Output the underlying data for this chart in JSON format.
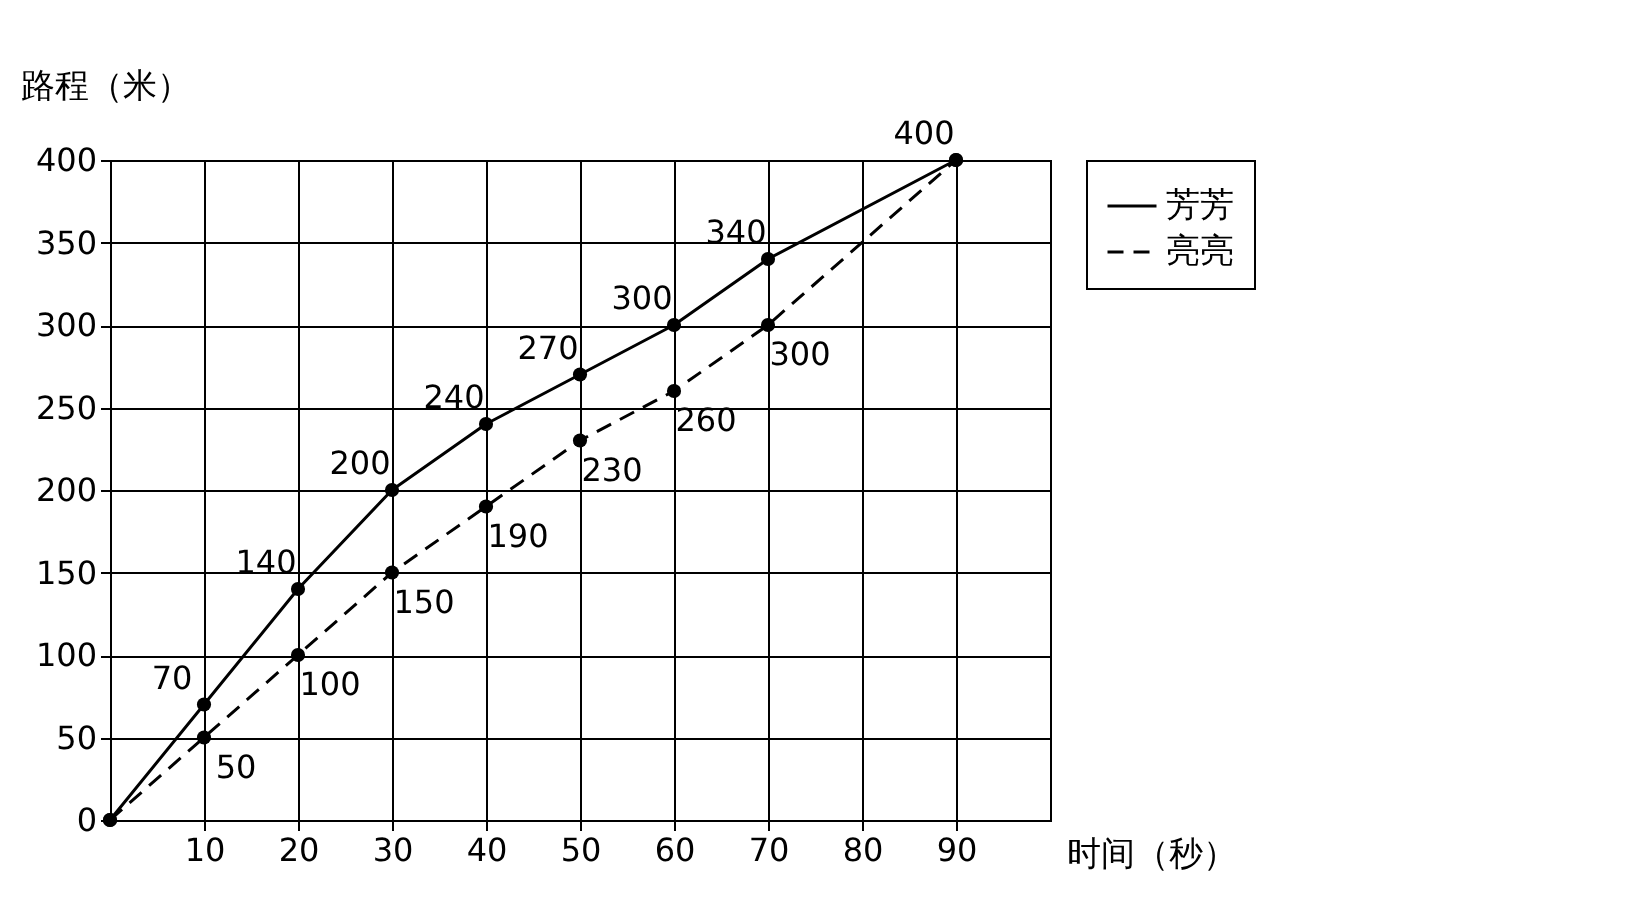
{
  "chart_data": {
    "type": "line",
    "xlabel": "时间（秒）",
    "ylabel": "路程（米）",
    "x": [
      0,
      10,
      20,
      30,
      40,
      50,
      60,
      70,
      90
    ],
    "series": [
      {
        "name": "芳芳",
        "color": "#000000",
        "line_style": "solid",
        "values": [
          0,
          70,
          140,
          200,
          240,
          270,
          300,
          340,
          400
        ],
        "value_labels": [
          null,
          "70",
          "140",
          "200",
          "240",
          "270",
          "300",
          "340",
          "400"
        ]
      },
      {
        "name": "亮亮",
        "color": "#000000",
        "line_style": "dashed",
        "values": [
          0,
          50,
          100,
          150,
          190,
          230,
          260,
          300,
          400
        ],
        "value_labels": [
          null,
          "50",
          "100",
          "150",
          "190",
          "230",
          "260",
          "300",
          null
        ]
      }
    ],
    "xlim": [
      0,
      100
    ],
    "xticks": [
      10,
      20,
      30,
      40,
      50,
      60,
      70,
      80,
      90
    ],
    "ylim": [
      0,
      400
    ],
    "yticks": [
      0,
      50,
      100,
      150,
      200,
      250,
      300,
      350,
      400
    ],
    "grid": true,
    "legend": "right",
    "marker": "circle"
  }
}
